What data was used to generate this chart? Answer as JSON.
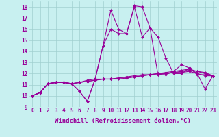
{
  "xlabel": "Windchill (Refroidissement éolien,°C)",
  "ylabel": "",
  "background_color": "#c8f0f0",
  "line_color": "#990099",
  "xlim": [
    -0.5,
    23.5
  ],
  "ylim": [
    9,
    18.5
  ],
  "xticks": [
    0,
    1,
    2,
    3,
    4,
    5,
    6,
    7,
    8,
    9,
    10,
    11,
    12,
    13,
    14,
    15,
    16,
    17,
    18,
    19,
    20,
    21,
    22,
    23
  ],
  "yticks": [
    9,
    10,
    11,
    12,
    13,
    14,
    15,
    16,
    17,
    18
  ],
  "series": [
    [
      10.0,
      10.3,
      11.1,
      11.2,
      11.2,
      11.1,
      10.4,
      9.5,
      11.5,
      14.5,
      17.7,
      16.0,
      15.6,
      18.1,
      18.0,
      16.1,
      15.3,
      13.4,
      12.0,
      12.0,
      12.5,
      12.0,
      10.6,
      11.8
    ],
    [
      10.0,
      10.3,
      11.1,
      11.2,
      11.2,
      11.1,
      10.4,
      9.5,
      11.5,
      14.5,
      16.0,
      15.6,
      15.6,
      18.0,
      15.3,
      16.1,
      11.9,
      11.9,
      12.2,
      12.8,
      12.5,
      11.9,
      11.9,
      11.8
    ],
    [
      10.0,
      10.3,
      11.1,
      11.2,
      11.2,
      11.1,
      11.2,
      11.4,
      11.5,
      11.5,
      11.5,
      11.5,
      11.6,
      11.7,
      11.8,
      11.9,
      12.0,
      12.0,
      12.1,
      12.2,
      12.3,
      12.2,
      12.1,
      11.8
    ],
    [
      10.0,
      10.3,
      11.1,
      11.2,
      11.2,
      11.1,
      11.2,
      11.3,
      11.4,
      11.5,
      11.5,
      11.6,
      11.6,
      11.7,
      11.8,
      11.9,
      11.9,
      12.0,
      12.1,
      12.1,
      12.2,
      12.0,
      11.8,
      11.8
    ],
    [
      10.0,
      10.3,
      11.1,
      11.2,
      11.2,
      11.1,
      11.2,
      11.3,
      11.4,
      11.5,
      11.5,
      11.6,
      11.7,
      11.8,
      11.9,
      11.9,
      12.0,
      12.1,
      12.2,
      12.3,
      12.4,
      12.2,
      12.0,
      11.8
    ]
  ],
  "marker": "D",
  "markersize": 2.0,
  "linewidth": 0.8,
  "grid_color": "#a0d0d0",
  "tick_fontsize": 5.5,
  "xlabel_fontsize": 6.5
}
